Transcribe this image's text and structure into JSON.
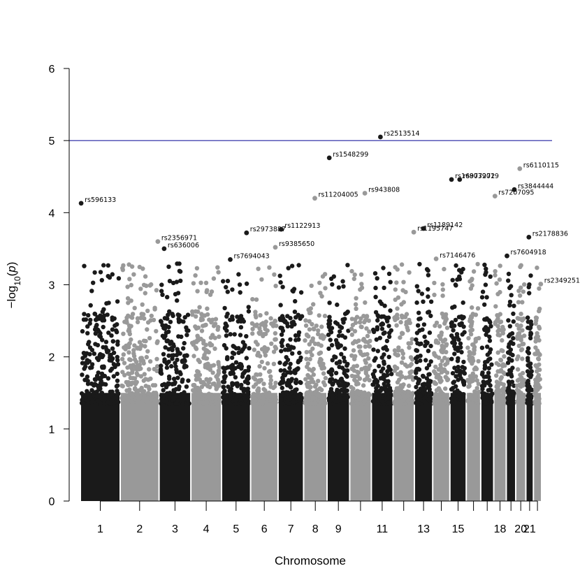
{
  "chart_data": {
    "type": "scatter",
    "title": "",
    "xlabel": "Chromosome",
    "ylabel": "−log10(p)",
    "ylim": [
      0,
      6
    ],
    "yticks": [
      0,
      1,
      2,
      3,
      4,
      5,
      6
    ],
    "significance_line": 5,
    "colors": {
      "odd": "#1a1a1a",
      "even": "#999999",
      "line": "#1f1fa0"
    },
    "chromosomes": [
      {
        "id": 1,
        "label": "1"
      },
      {
        "id": 2,
        "label": "2"
      },
      {
        "id": 3,
        "label": "3"
      },
      {
        "id": 4,
        "label": "4"
      },
      {
        "id": 5,
        "label": "5"
      },
      {
        "id": 6,
        "label": "6"
      },
      {
        "id": 7,
        "label": "7"
      },
      {
        "id": 8,
        "label": "8"
      },
      {
        "id": 9,
        "label": "9"
      },
      {
        "id": 10,
        "label": ""
      },
      {
        "id": 11,
        "label": "11"
      },
      {
        "id": 12,
        "label": ""
      },
      {
        "id": 13,
        "label": "13"
      },
      {
        "id": 14,
        "label": ""
      },
      {
        "id": 15,
        "label": "15"
      },
      {
        "id": 16,
        "label": ""
      },
      {
        "id": 17,
        "label": ""
      },
      {
        "id": 18,
        "label": "18"
      },
      {
        "id": 19,
        "label": ""
      },
      {
        "id": 20,
        "label": "20"
      },
      {
        "id": 21,
        "label": "21"
      },
      {
        "id": 22,
        "label": ""
      }
    ],
    "labeled_snps": [
      {
        "chr": 1,
        "pos": 0.02,
        "y": 4.13,
        "label": "rs596133"
      },
      {
        "chr": 3,
        "pos": 0.16,
        "y": 3.5,
        "label": "rs636006"
      },
      {
        "chr": 2,
        "pos": 0.97,
        "y": 3.6,
        "label": "rs2356971"
      },
      {
        "chr": 5,
        "pos": 0.3,
        "y": 3.35,
        "label": "rs7694043"
      },
      {
        "chr": 5,
        "pos": 0.86,
        "y": 3.72,
        "label": "rs2973887"
      },
      {
        "chr": 7,
        "pos": 0.12,
        "y": 3.77,
        "label": "rs1122913"
      },
      {
        "chr": 6,
        "pos": 0.9,
        "y": 3.52,
        "label": "rs9385650"
      },
      {
        "chr": 8,
        "pos": 0.48,
        "y": 4.2,
        "label": "rs11204005"
      },
      {
        "chr": 9,
        "pos": 0.1,
        "y": 4.76,
        "label": "rs1548299"
      },
      {
        "chr": 10,
        "pos": 0.7,
        "y": 4.27,
        "label": "rs943808"
      },
      {
        "chr": 11,
        "pos": 0.42,
        "y": 5.05,
        "label": "rs2513514"
      },
      {
        "chr": 12,
        "pos": 0.97,
        "y": 3.73,
        "label": "rs1195747"
      },
      {
        "chr": 13,
        "pos": 0.5,
        "y": 3.78,
        "label": "rs1189142"
      },
      {
        "chr": 14,
        "pos": 0.2,
        "y": 3.36,
        "label": "rs7146476"
      },
      {
        "chr": 15,
        "pos": 0.1,
        "y": 4.46,
        "label": "rs16977272"
      },
      {
        "chr": 15,
        "pos": 0.6,
        "y": 4.46,
        "label": "rs8039019"
      },
      {
        "chr": 18,
        "pos": 0.1,
        "y": 4.23,
        "label": "rs7207095"
      },
      {
        "chr": 19,
        "pos": 0.08,
        "y": 3.4,
        "label": "rs7604918"
      },
      {
        "chr": 19,
        "pos": 0.85,
        "y": 4.32,
        "label": "rs3844444"
      },
      {
        "chr": 20,
        "pos": 0.4,
        "y": 4.61,
        "label": "rs6110115"
      },
      {
        "chr": 21,
        "pos": 0.4,
        "y": 3.66,
        "label": "rs2178836"
      },
      {
        "chr": 22,
        "pos": 0.9,
        "y": 3.01,
        "label": "rs2349251"
      }
    ]
  }
}
